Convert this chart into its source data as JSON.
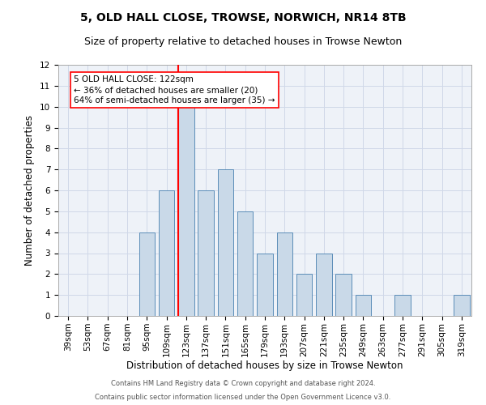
{
  "title": "5, OLD HALL CLOSE, TROWSE, NORWICH, NR14 8TB",
  "subtitle": "Size of property relative to detached houses in Trowse Newton",
  "xlabel": "Distribution of detached houses by size in Trowse Newton",
  "ylabel": "Number of detached properties",
  "footer_line1": "Contains HM Land Registry data © Crown copyright and database right 2024.",
  "footer_line2": "Contains public sector information licensed under the Open Government Licence v3.0.",
  "categories": [
    "39sqm",
    "53sqm",
    "67sqm",
    "81sqm",
    "95sqm",
    "109sqm",
    "123sqm",
    "137sqm",
    "151sqm",
    "165sqm",
    "179sqm",
    "193sqm",
    "207sqm",
    "221sqm",
    "235sqm",
    "249sqm",
    "263sqm",
    "277sqm",
    "291sqm",
    "305sqm",
    "319sqm"
  ],
  "values": [
    0,
    0,
    0,
    0,
    4,
    6,
    10,
    6,
    7,
    5,
    3,
    4,
    2,
    3,
    2,
    1,
    0,
    1,
    0,
    0,
    1
  ],
  "bar_color": "#c9d9e8",
  "bar_edge_color": "#5b8db8",
  "annotation_text": "5 OLD HALL CLOSE: 122sqm\n← 36% of detached houses are smaller (20)\n64% of semi-detached houses are larger (35) →",
  "ylim": [
    0,
    12
  ],
  "yticks": [
    0,
    1,
    2,
    3,
    4,
    5,
    6,
    7,
    8,
    9,
    10,
    11,
    12
  ],
  "grid_color": "#d0d8e8",
  "bg_color": "#eef2f8",
  "title_fontsize": 10,
  "subtitle_fontsize": 9,
  "tick_fontsize": 7.5,
  "ylabel_fontsize": 8.5,
  "xlabel_fontsize": 8.5,
  "footer_fontsize": 6.0,
  "annotation_fontsize": 7.5
}
